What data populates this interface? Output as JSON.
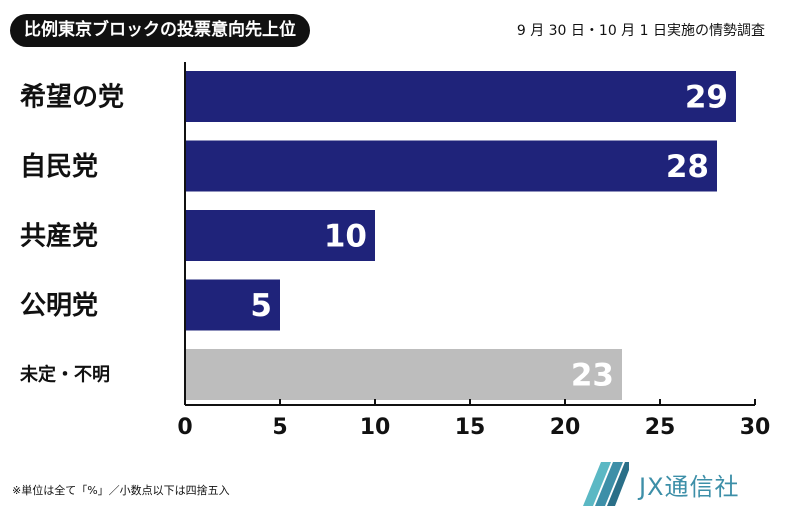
{
  "header": {
    "title": "比例東京ブロックの投票意向先上位",
    "subtitle": "9 月 30 日・10 月 1 日実施の情勢調査"
  },
  "chart_data": {
    "type": "bar",
    "orientation": "horizontal",
    "categories": [
      "希望の党",
      "自民党",
      "共産党",
      "公明党",
      "未定・不明"
    ],
    "values": [
      29,
      28,
      10,
      5,
      23
    ],
    "data_labels": [
      "29",
      "28",
      "10",
      "5",
      "23"
    ],
    "colors": [
      "#1f237a",
      "#1f237a",
      "#1f237a",
      "#1f237a",
      "#bdbdbd"
    ],
    "xlim": [
      0,
      30
    ],
    "ticks": [
      0,
      5,
      10,
      15,
      20,
      25,
      30
    ],
    "tick_labels": [
      "0",
      "5",
      "10",
      "15",
      "20",
      "25",
      "30"
    ],
    "grid": false,
    "legend": "none"
  },
  "footer": {
    "note": "※単位は全て「%」／小数点以下は四捨五入",
    "brand": "JX通信社",
    "brand_color": "#3d8fa8"
  }
}
